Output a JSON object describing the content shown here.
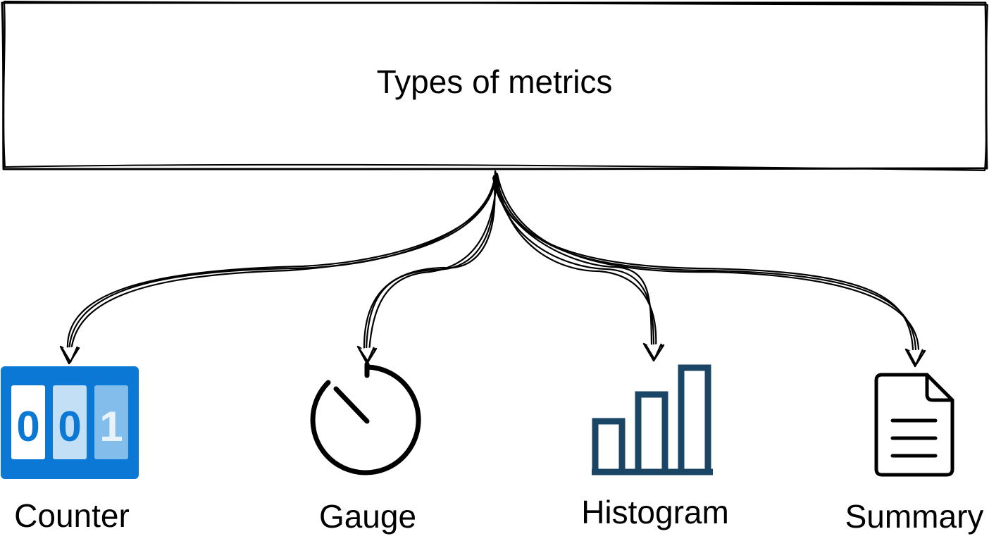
{
  "diagram": {
    "title": "Types of metrics",
    "nodes": [
      {
        "id": "counter",
        "label": "Counter",
        "icon": "counter-icon",
        "digits": [
          "0",
          "0",
          "1"
        ]
      },
      {
        "id": "gauge",
        "label": "Gauge",
        "icon": "gauge-icon"
      },
      {
        "id": "histogram",
        "label": "Histogram",
        "icon": "histogram-icon"
      },
      {
        "id": "summary",
        "label": "Summary",
        "icon": "document-icon"
      }
    ],
    "edges": [
      {
        "from": "title",
        "to": "counter"
      },
      {
        "from": "title",
        "to": "gauge"
      },
      {
        "from": "title",
        "to": "histogram"
      },
      {
        "from": "title",
        "to": "summary"
      }
    ]
  },
  "colors": {
    "stroke": "#000000",
    "counter_blue": "#0a78d4",
    "counter_light": "#c3dff5",
    "counter_mid": "#83bdeb",
    "histogram_navy": "#1a4565"
  }
}
